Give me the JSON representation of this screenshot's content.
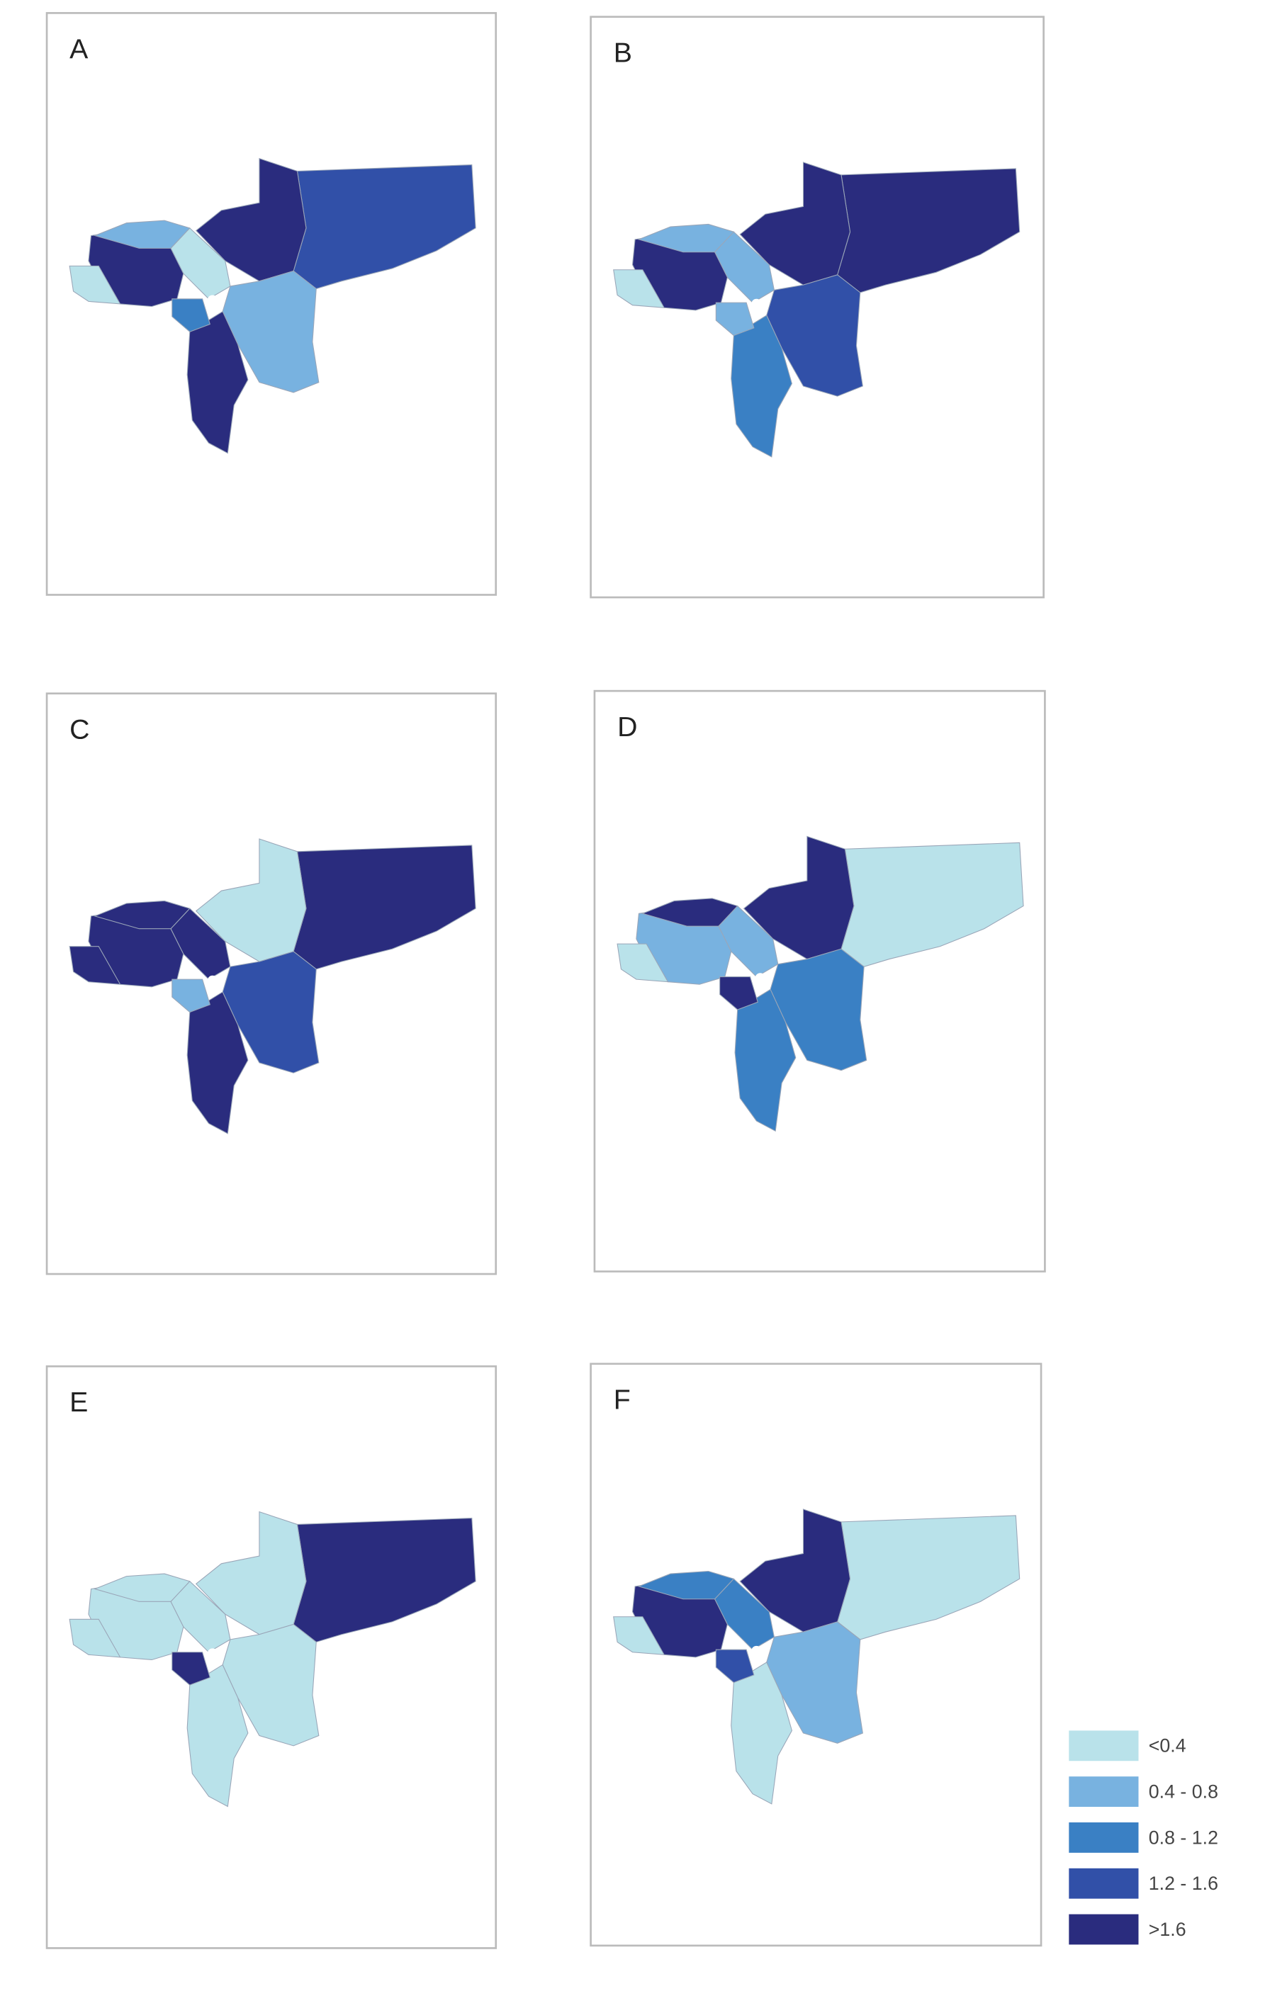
{
  "panels": [
    {
      "label": "A"
    },
    {
      "label": "B"
    },
    {
      "label": "C"
    },
    {
      "label": "D"
    },
    {
      "label": "E"
    },
    {
      "label": "F"
    }
  ],
  "legend": {
    "items": [
      {
        "label": "<0.4",
        "color": "#b9e2ea"
      },
      {
        "label": "0.4 - 0.8",
        "color": "#78b2e0"
      },
      {
        "label": "0.8 - 1.2",
        "color": "#3a80c4"
      },
      {
        "label": "1.2 - 1.6",
        "color": "#3150a8"
      },
      {
        "label": ">1.6",
        "color": "#2a2c7e"
      }
    ]
  }
}
